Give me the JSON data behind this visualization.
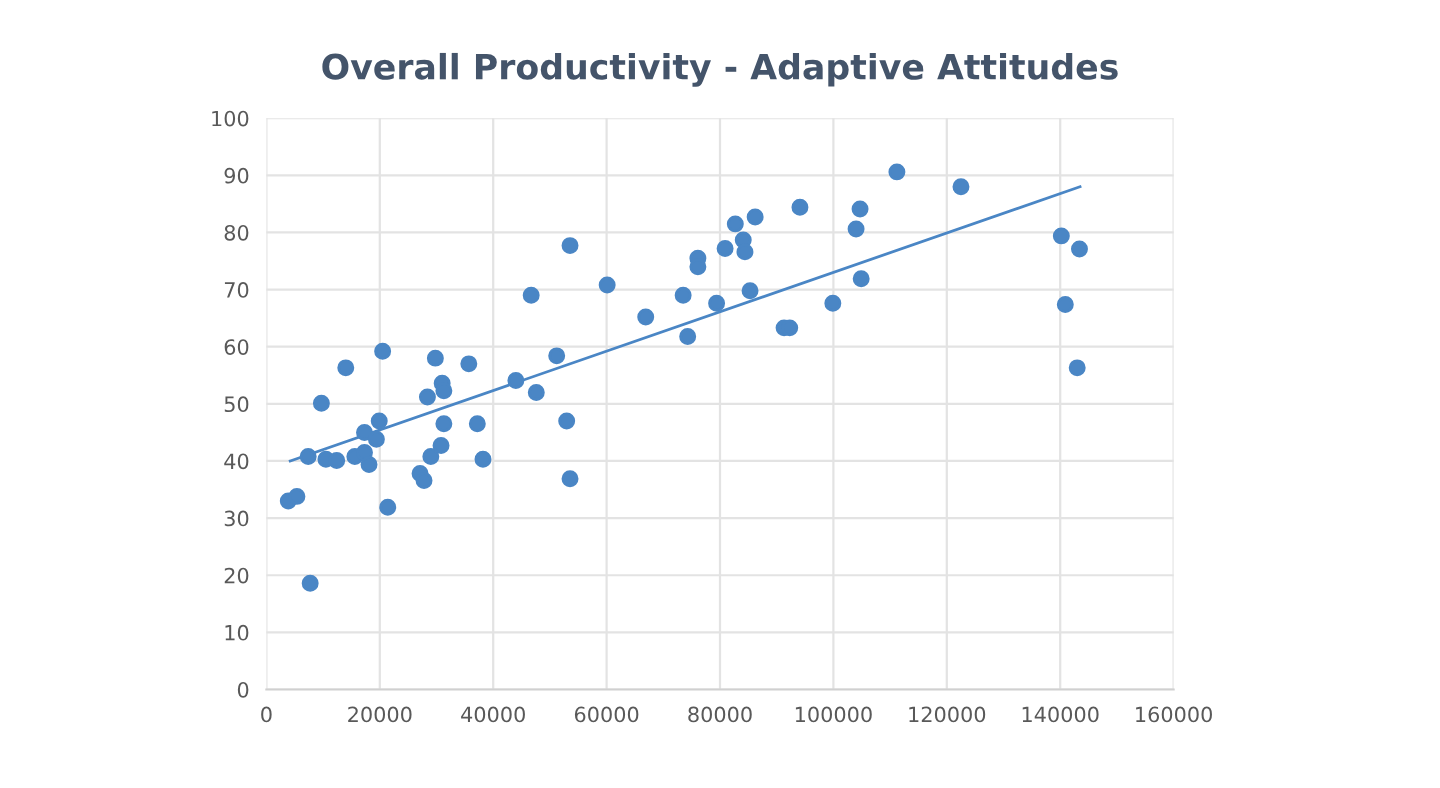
{
  "chart_data": {
    "type": "scatter",
    "title": "Overall Productivity - Adaptive Attitudes",
    "xlim": [
      0,
      160000
    ],
    "xticks": [
      0,
      20000,
      40000,
      60000,
      80000,
      100000,
      120000,
      140000,
      160000
    ],
    "ylim": [
      0,
      100
    ],
    "yticks": [
      0,
      10,
      20,
      30,
      40,
      50,
      60,
      70,
      80,
      90,
      100
    ],
    "grid": true,
    "series": [
      {
        "color": "#4a86c5",
        "marker": "circle",
        "x": [
          3860,
          5380,
          7370,
          7720,
          9700,
          10500,
          12400,
          14000,
          15600,
          17300,
          17300,
          18100,
          19400,
          19900,
          20500,
          21400,
          27100,
          27800,
          28400,
          29000,
          29800,
          30800,
          31000,
          31300,
          31300,
          35700,
          37200,
          38200,
          44000,
          46700,
          47600,
          51200,
          52960,
          53550,
          53550,
          60100,
          66900,
          73500,
          74300,
          76100,
          76100,
          79400,
          80900,
          82700,
          84100,
          84400,
          85300,
          86200,
          91300,
          92300,
          94100,
          99900,
          104000,
          104700,
          104900,
          111200,
          122500,
          140200,
          143400,
          140900,
          143000
        ],
        "values": [
          33.0,
          33.8,
          40.8,
          18.6,
          50.1,
          40.3,
          40.1,
          56.3,
          40.8,
          45.0,
          41.5,
          39.4,
          43.8,
          47.0,
          59.2,
          31.9,
          37.8,
          36.6,
          51.2,
          40.8,
          58.0,
          42.7,
          53.6,
          52.3,
          46.5,
          57.0,
          46.5,
          40.3,
          54.1,
          69.0,
          52.0,
          58.4,
          47.0,
          77.7,
          36.9,
          70.8,
          65.2,
          69.0,
          61.8,
          75.5,
          74.0,
          67.6,
          77.2,
          81.5,
          78.7,
          76.6,
          69.8,
          82.7,
          63.3,
          63.3,
          84.4,
          67.6,
          80.6,
          84.1,
          71.9,
          90.6,
          88.0,
          79.4,
          77.1,
          67.4,
          56.3
        ]
      },
      {
        "type": "line",
        "color": "#4a86c5",
        "marker": "none",
        "line_style": "solid",
        "x": [
          4200,
          143500
        ],
        "values": [
          40.0,
          88.0
        ]
      }
    ]
  }
}
